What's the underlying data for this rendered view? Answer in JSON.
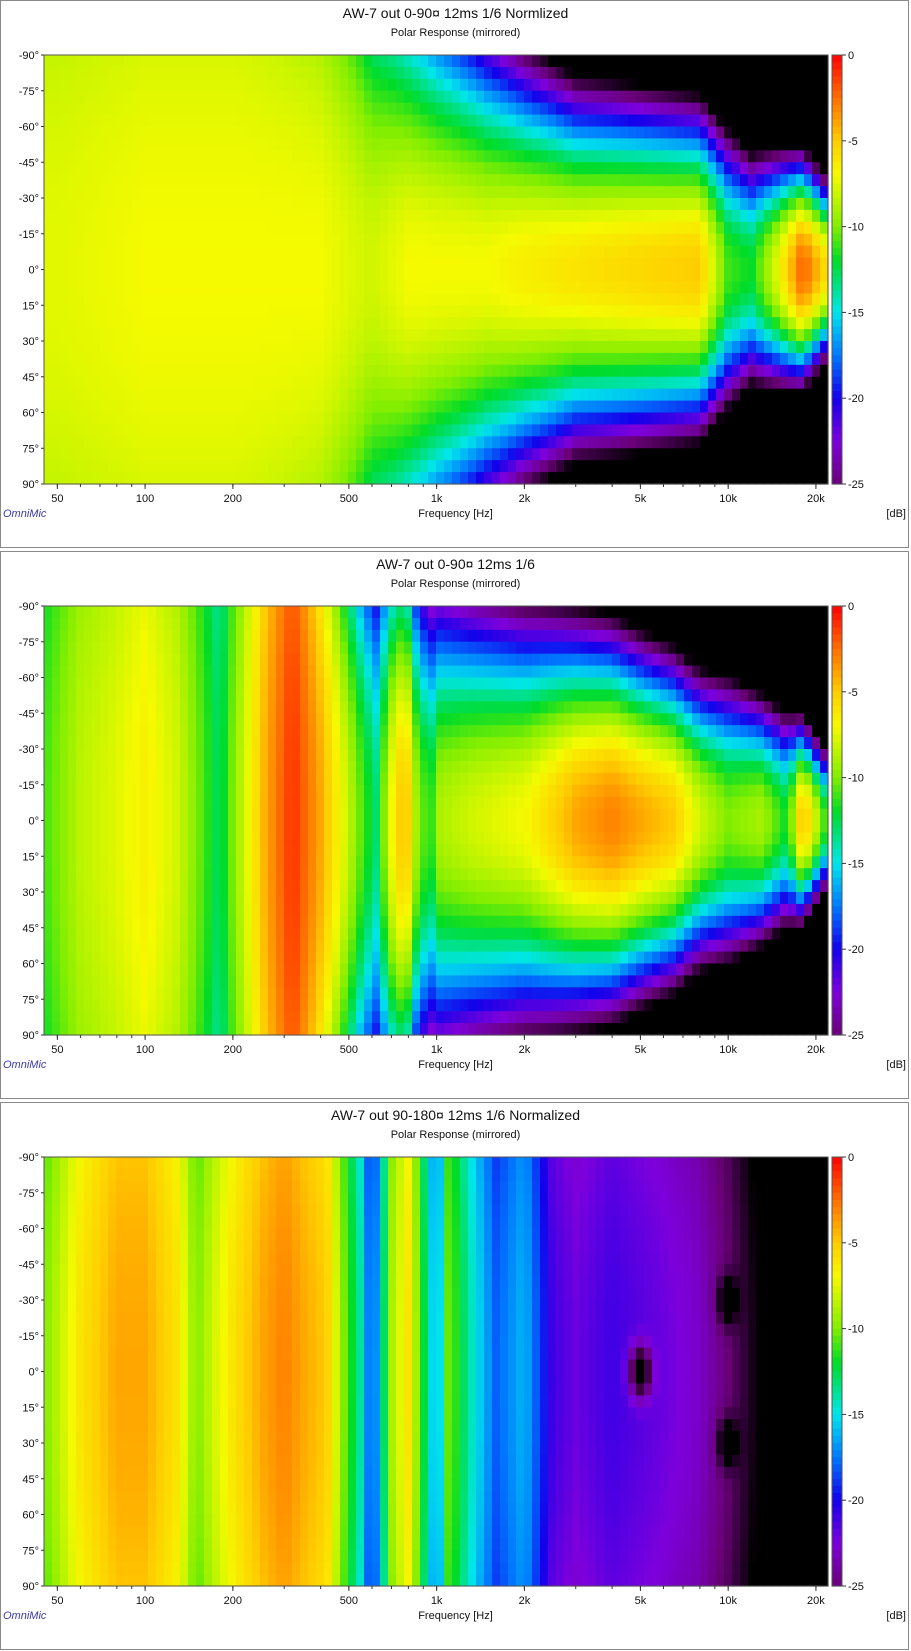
{
  "chart_data": [
    {
      "type": "heatmap",
      "title": "AW-7 out 0-90¤ 12ms 1/6  Normlized",
      "subtitle": "Polar Response (mirrored)",
      "xlabel": "Frequency [Hz]",
      "xscale": "log",
      "xlim": [
        45,
        22000
      ],
      "xticks": [
        50,
        100,
        200,
        500,
        1000,
        2000,
        5000,
        10000,
        20000
      ],
      "xticklabels": [
        "50",
        "100",
        "200",
        "500",
        "1k",
        "2k",
        "5k",
        "10k",
        "20k"
      ],
      "ylim": [
        -90,
        90
      ],
      "yticks": [
        -90,
        -75,
        -60,
        -45,
        -30,
        -15,
        0,
        15,
        30,
        45,
        60,
        75,
        90
      ],
      "yticklabels": [
        "-90°",
        "-75°",
        "-60°",
        "-45°",
        "-30°",
        "-15°",
        "0°",
        "15°",
        "30°",
        "45°",
        "60°",
        "75°",
        "90°"
      ],
      "colorbar": {
        "label": "[dB]",
        "range": [
          -25,
          0
        ],
        "ticks": [
          "0",
          "-5",
          "-10",
          "-15",
          "-20",
          "-25"
        ]
      },
      "watermark": "OmniMic",
      "level_profile": {
        "freq": [
          50,
          100,
          200,
          400,
          600,
          800,
          1000,
          1500,
          2000,
          3000,
          5000,
          8000,
          10000,
          12000,
          15000,
          18000,
          22000
        ],
        "on_axis_db": [
          -7.5,
          -7,
          -7,
          -7,
          -8,
          -7,
          -7,
          -7,
          -6.5,
          -6,
          -5.5,
          -5,
          -11,
          -12,
          -7,
          -2,
          -6
        ],
        "beamwidth_deg": [
          500,
          500,
          500,
          330,
          200,
          160,
          140,
          115,
          100,
          85,
          80,
          75,
          70,
          60,
          55,
          50,
          40
        ],
        "deep_nulls": [
          {
            "freq": 12500,
            "angle": -85,
            "db": -30
          },
          {
            "freq": 12500,
            "angle": 85,
            "db": -30
          }
        ]
      }
    },
    {
      "type": "heatmap",
      "title": "AW-7 out 0-90¤ 12ms 1/6",
      "subtitle": "Polar Response (mirrored)",
      "xlabel": "Frequency [Hz]",
      "xscale": "log",
      "xlim": [
        45,
        22000
      ],
      "xticks": [
        50,
        100,
        200,
        500,
        1000,
        2000,
        5000,
        10000,
        20000
      ],
      "xticklabels": [
        "50",
        "100",
        "200",
        "500",
        "1k",
        "2k",
        "5k",
        "10k",
        "20k"
      ],
      "ylim": [
        -90,
        90
      ],
      "yticks": [
        -90,
        -75,
        -60,
        -45,
        -30,
        -15,
        0,
        15,
        30,
        45,
        60,
        75,
        90
      ],
      "yticklabels": [
        "-90°",
        "-75°",
        "-60°",
        "-45°",
        "-30°",
        "-15°",
        "0°",
        "15°",
        "30°",
        "45°",
        "60°",
        "75°",
        "90°"
      ],
      "colorbar": {
        "label": "[dB]",
        "range": [
          -25,
          0
        ],
        "ticks": [
          "0",
          "-5",
          "-10",
          "-15",
          "-20",
          "-25"
        ]
      },
      "watermark": "OmniMic",
      "level_profile": {
        "freq": [
          45,
          60,
          80,
          100,
          130,
          160,
          180,
          200,
          260,
          320,
          400,
          480,
          560,
          620,
          700,
          780,
          850,
          950,
          1000,
          1300,
          2000,
          3000,
          4000,
          5000,
          6500,
          8000,
          10000,
          13000,
          16000,
          18000,
          22000
        ],
        "on_axis_db": [
          -11,
          -8.5,
          -7.5,
          -6.5,
          -8,
          -11,
          -13,
          -10,
          -4,
          -1,
          -4,
          -7.5,
          -11,
          -13,
          -7,
          -4,
          -9,
          -12,
          -9,
          -8,
          -7,
          -4,
          -3,
          -4,
          -5,
          -8,
          -10,
          -9,
          -12,
          -4,
          -12
        ],
        "beamwidth_deg": [
          500,
          500,
          500,
          500,
          500,
          500,
          500,
          500,
          500,
          500,
          300,
          220,
          180,
          170,
          160,
          150,
          140,
          130,
          120,
          110,
          100,
          90,
          85,
          80,
          75,
          70,
          70,
          60,
          55,
          45,
          35
        ],
        "deep_nulls": [
          {
            "freq": 20000,
            "angle": -85,
            "db": -30
          },
          {
            "freq": 20000,
            "angle": 85,
            "db": -30
          },
          {
            "freq": 12500,
            "angle": -85,
            "db": -30
          },
          {
            "freq": 12500,
            "angle": 85,
            "db": -30
          }
        ]
      }
    },
    {
      "type": "heatmap",
      "title": "AW-7 out 90-180¤ 12ms 1/6 Normalized",
      "subtitle": "Polar Response (mirrored)",
      "xlabel": "Frequency [Hz]",
      "xscale": "log",
      "xlim": [
        45,
        22000
      ],
      "xticks": [
        50,
        100,
        200,
        500,
        1000,
        2000,
        5000,
        10000,
        20000
      ],
      "xticklabels": [
        "50",
        "100",
        "200",
        "500",
        "1k",
        "2k",
        "5k",
        "10k",
        "20k"
      ],
      "ylim": [
        -90,
        90
      ],
      "yticks": [
        -90,
        -75,
        -60,
        -45,
        -30,
        -15,
        0,
        15,
        30,
        45,
        60,
        75,
        90
      ],
      "yticklabels": [
        "-90°",
        "-75°",
        "-60°",
        "-45°",
        "-30°",
        "-15°",
        "0°",
        "15°",
        "30°",
        "45°",
        "60°",
        "75°",
        "90°"
      ],
      "colorbar": {
        "label": "[dB]",
        "range": [
          -25,
          0
        ],
        "ticks": [
          "0",
          "-5",
          "-10",
          "-15",
          "-20",
          "-25"
        ]
      },
      "watermark": "OmniMic",
      "level_profile": {
        "freq": [
          45,
          60,
          80,
          100,
          130,
          150,
          170,
          200,
          250,
          300,
          350,
          420,
          480,
          550,
          600,
          700,
          800,
          900,
          1000,
          1100,
          1300,
          1600,
          2000,
          2500,
          3000,
          4000,
          6000,
          8000,
          10000,
          15000,
          22000
        ],
        "on_axis_db": [
          -10,
          -6,
          -4,
          -4,
          -6,
          -10,
          -8,
          -6,
          -4,
          -3,
          -4,
          -5,
          -10,
          -14,
          -19,
          -9,
          -6,
          -12,
          -17,
          -10,
          -14,
          -18,
          -16,
          -21,
          -22,
          -21,
          -22,
          -23,
          -25,
          -30,
          -30
        ],
        "beamwidth_deg": [
          500,
          500,
          500,
          500,
          500,
          500,
          500,
          500,
          500,
          500,
          500,
          500,
          500,
          500,
          500,
          500,
          500,
          500,
          500,
          500,
          500,
          500,
          500,
          500,
          500,
          500,
          500,
          500,
          500,
          500,
          500
        ],
        "deep_nulls": [
          {
            "freq": 5000,
            "angle": 0,
            "db": -30
          },
          {
            "freq": 10000,
            "angle": -30,
            "db": -30
          },
          {
            "freq": 10000,
            "angle": 30,
            "db": -30
          },
          {
            "freq": 15000,
            "angle": 0,
            "db": -30
          }
        ]
      }
    }
  ]
}
